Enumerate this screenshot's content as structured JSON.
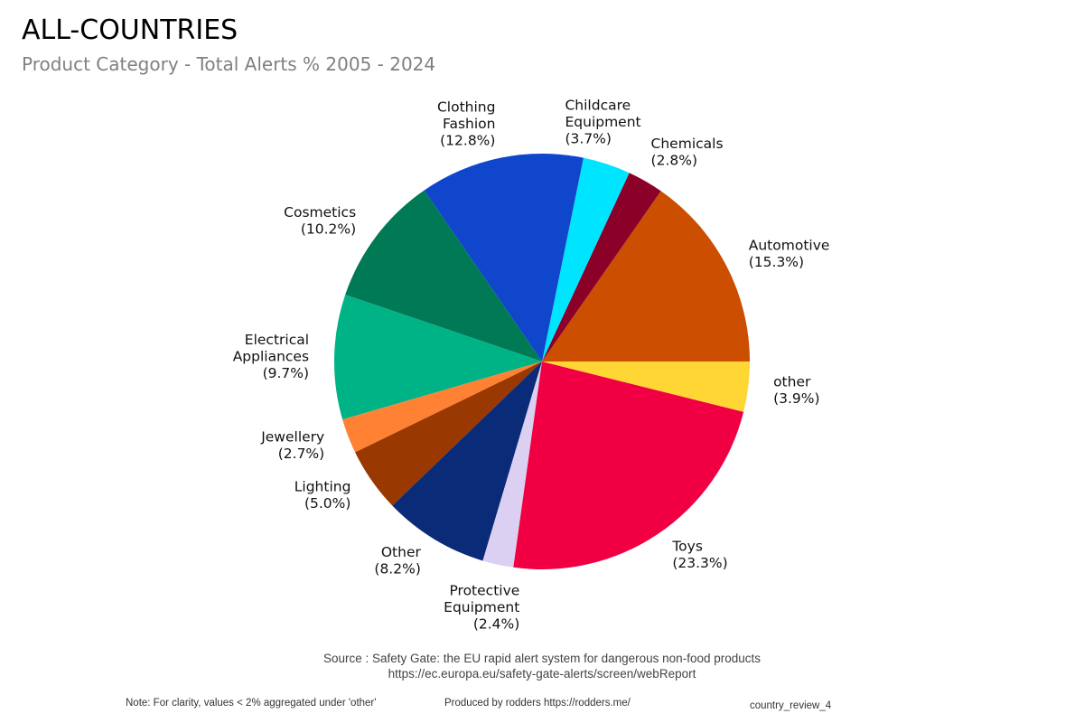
{
  "chart_data": {
    "type": "pie",
    "title": "ALL-COUNTRIES",
    "subtitle": "Product Category - Total Alerts % 2005 - 2024",
    "direction": "counterclockwise",
    "start": "3 o'clock",
    "slices": [
      {
        "label": [
          "Automotive"
        ],
        "value": 15.3,
        "pct_label": "(15.3%)",
        "color": "#cc4e00"
      },
      {
        "label": [
          "Chemicals"
        ],
        "value": 2.8,
        "pct_label": "(2.8%)",
        "color": "#8b0028"
      },
      {
        "label": [
          "Childcare",
          "Equipment"
        ],
        "value": 3.7,
        "pct_label": "(3.7%)",
        "color": "#00e5ff"
      },
      {
        "label": [
          "Clothing",
          "Fashion"
        ],
        "value": 12.8,
        "pct_label": "(12.8%)",
        "color": "#1046cc"
      },
      {
        "label": [
          "Cosmetics"
        ],
        "value": 10.2,
        "pct_label": "(10.2%)",
        "color": "#007a55"
      },
      {
        "label": [
          "Electrical",
          "Appliances"
        ],
        "value": 9.7,
        "pct_label": "(9.7%)",
        "color": "#00b386"
      },
      {
        "label": [
          "Jewellery"
        ],
        "value": 2.7,
        "pct_label": "(2.7%)",
        "color": "#ff8133"
      },
      {
        "label": [
          "Lighting"
        ],
        "value": 5.0,
        "pct_label": "(5.0%)",
        "color": "#993800"
      },
      {
        "label": [
          "Other"
        ],
        "value": 8.2,
        "pct_label": "(8.2%)",
        "color": "#0a2b78"
      },
      {
        "label": [
          "Protective",
          "Equipment"
        ],
        "value": 2.4,
        "pct_label": "(2.4%)",
        "color": "#dcd0f2"
      },
      {
        "label": [
          "Toys"
        ],
        "value": 23.3,
        "pct_label": "(23.3%)",
        "color": "#f00043"
      },
      {
        "label": [
          "other"
        ],
        "value": 3.9,
        "pct_label": "(3.9%)",
        "color": "#ffd633"
      }
    ]
  },
  "footer": {
    "source_line1": "Source : Safety Gate: the EU rapid alert system for dangerous non-food products",
    "source_line2": "https://ec.europa.eu/safety-gate-alerts/screen/webReport",
    "note": "Note: For clarity, values < 2% aggregated under 'other'",
    "produced_by": "Produced by rodders https://rodders.me/",
    "chart_id": "country_review_4"
  }
}
